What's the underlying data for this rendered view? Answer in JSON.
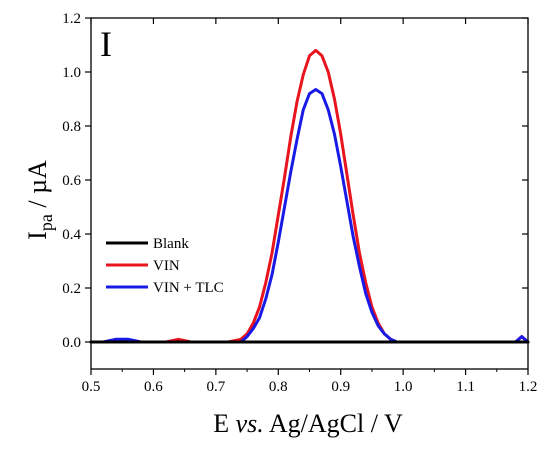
{
  "chart_data": {
    "type": "line",
    "panel_label": "I",
    "xlabel": {
      "main": "E ",
      "italic": "vs.",
      "rest": " Ag/AgCl / V"
    },
    "ylabel": {
      "main": "I",
      "sub": "pa",
      "rest": " / µA"
    },
    "xlim": [
      0.5,
      1.2
    ],
    "ylim": [
      -0.1,
      1.2
    ],
    "xticks": [
      0.5,
      0.6,
      0.7,
      0.8,
      0.9,
      1.0,
      1.1,
      1.2
    ],
    "xtick_labels": [
      "0.5",
      "0.6",
      "0.7",
      "0.8",
      "0.9",
      "1.0",
      "1.1",
      "1.2"
    ],
    "yticks": [
      0.0,
      0.2,
      0.4,
      0.6,
      0.8,
      1.0,
      1.2
    ],
    "ytick_labels": [
      "0.0",
      "0.2",
      "0.4",
      "0.6",
      "0.8",
      "1.0",
      "1.2"
    ],
    "grid": false,
    "legend_position": "lower-left",
    "x": [
      0.5,
      0.52,
      0.54,
      0.56,
      0.58,
      0.6,
      0.62,
      0.64,
      0.66,
      0.68,
      0.7,
      0.72,
      0.74,
      0.75,
      0.76,
      0.77,
      0.78,
      0.79,
      0.8,
      0.81,
      0.82,
      0.83,
      0.84,
      0.85,
      0.86,
      0.87,
      0.88,
      0.89,
      0.9,
      0.91,
      0.92,
      0.93,
      0.94,
      0.95,
      0.96,
      0.97,
      0.98,
      0.99,
      1.0,
      1.02,
      1.04,
      1.06,
      1.08,
      1.1,
      1.12,
      1.14,
      1.16,
      1.18,
      1.19,
      1.2
    ],
    "series": [
      {
        "name": "Blank",
        "color": "#000000",
        "values": [
          0.0,
          0.0,
          0.0,
          0.0,
          0.0,
          0.0,
          0.0,
          0.0,
          0.0,
          0.0,
          0.0,
          0.0,
          0.0,
          0.0,
          0.0,
          0.0,
          0.0,
          0.0,
          0.0,
          0.0,
          0.0,
          0.0,
          0.0,
          0.0,
          0.0,
          0.0,
          0.0,
          0.0,
          0.0,
          0.0,
          0.0,
          0.0,
          0.0,
          0.0,
          0.0,
          0.0,
          0.0,
          0.0,
          0.0,
          0.0,
          0.0,
          0.0,
          0.0,
          0.0,
          0.0,
          0.0,
          0.0,
          0.0,
          0.0,
          0.0
        ]
      },
      {
        "name": "VIN",
        "color": "#e8141e",
        "values": [
          0.0,
          0.0,
          0.01,
          0.0,
          0.0,
          0.0,
          0.0,
          0.01,
          0.0,
          0.0,
          0.0,
          0.0,
          0.01,
          0.03,
          0.07,
          0.13,
          0.22,
          0.33,
          0.47,
          0.61,
          0.76,
          0.89,
          0.99,
          1.06,
          1.08,
          1.06,
          1.0,
          0.9,
          0.77,
          0.62,
          0.47,
          0.33,
          0.22,
          0.13,
          0.07,
          0.03,
          0.01,
          0.0,
          0.0,
          0.0,
          0.0,
          0.0,
          0.0,
          0.0,
          0.0,
          0.0,
          0.0,
          0.0,
          0.02,
          0.0
        ]
      },
      {
        "name": "VIN + TLC",
        "color": "#1a1ae6",
        "values": [
          0.0,
          0.0,
          0.01,
          0.01,
          0.0,
          0.0,
          0.0,
          0.0,
          0.0,
          0.0,
          0.0,
          0.0,
          0.0,
          0.02,
          0.05,
          0.09,
          0.16,
          0.25,
          0.37,
          0.5,
          0.63,
          0.75,
          0.86,
          0.92,
          0.935,
          0.92,
          0.86,
          0.77,
          0.65,
          0.52,
          0.39,
          0.28,
          0.18,
          0.11,
          0.06,
          0.03,
          0.01,
          0.0,
          0.0,
          0.0,
          0.0,
          0.0,
          0.0,
          0.0,
          0.0,
          0.0,
          0.0,
          0.0,
          0.02,
          0.0
        ]
      }
    ]
  }
}
